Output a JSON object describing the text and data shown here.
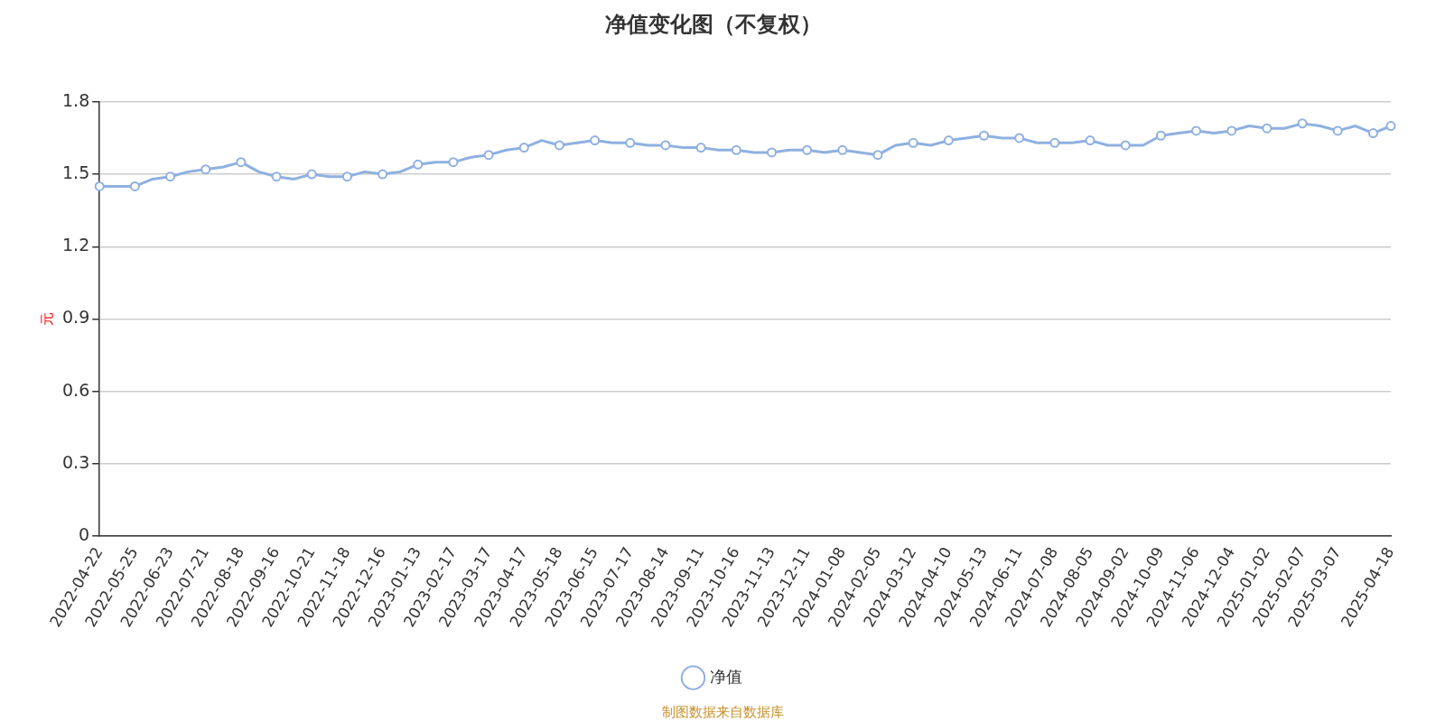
{
  "chart_data": {
    "type": "line",
    "title": "净值变化图（不复权）",
    "ylabel": "元",
    "categories": [
      "2022-04-22",
      null,
      "2022-05-25",
      null,
      "2022-06-23",
      null,
      "2022-07-21",
      null,
      "2022-08-18",
      null,
      "2022-09-16",
      null,
      "2022-10-21",
      null,
      "2022-11-18",
      null,
      "2022-12-16",
      null,
      "2023-01-13",
      null,
      "2023-02-17",
      null,
      "2023-03-17",
      null,
      "2023-04-17",
      null,
      "2023-05-18",
      null,
      "2023-06-15",
      null,
      "2023-07-17",
      null,
      "2023-08-14",
      null,
      "2023-09-11",
      null,
      "2023-10-16",
      null,
      "2023-11-13",
      null,
      "2023-12-11",
      null,
      "2024-01-08",
      null,
      "2024-02-05",
      null,
      "2024-03-12",
      null,
      "2024-04-10",
      null,
      "2024-05-13",
      null,
      "2024-06-11",
      null,
      "2024-07-08",
      null,
      "2024-08-05",
      null,
      "2024-09-02",
      null,
      "2024-10-09",
      null,
      "2024-11-06",
      null,
      "2024-12-04",
      null,
      "2025-01-02",
      null,
      "2025-02-07",
      null,
      "2025-03-07",
      null,
      null,
      "2025-04-18"
    ],
    "series": [
      {
        "name": "净值",
        "color": "#8fb0e0",
        "values": [
          1.45,
          1.45,
          1.45,
          1.48,
          1.49,
          1.51,
          1.52,
          1.53,
          1.55,
          1.51,
          1.49,
          1.48,
          1.5,
          1.49,
          1.49,
          1.51,
          1.5,
          1.51,
          1.54,
          1.55,
          1.55,
          1.57,
          1.58,
          1.6,
          1.61,
          1.64,
          1.62,
          1.63,
          1.64,
          1.63,
          1.63,
          1.62,
          1.62,
          1.61,
          1.61,
          1.6,
          1.6,
          1.59,
          1.59,
          1.6,
          1.6,
          1.59,
          1.6,
          1.59,
          1.58,
          1.62,
          1.63,
          1.62,
          1.64,
          1.65,
          1.66,
          1.65,
          1.65,
          1.63,
          1.63,
          1.63,
          1.64,
          1.62,
          1.62,
          1.62,
          1.66,
          1.67,
          1.68,
          1.67,
          1.68,
          1.7,
          1.69,
          1.69,
          1.71,
          1.7,
          1.68,
          1.7,
          1.67,
          1.7
        ]
      }
    ],
    "ylim": [
      0,
      1.8
    ],
    "yticks": [
      0,
      0.3,
      0.6,
      0.9,
      1.2,
      1.5,
      1.8
    ],
    "grid": "y",
    "legend": "bottom",
    "marker": "circle",
    "annotations": [
      "制图数据来自数据库"
    ]
  }
}
